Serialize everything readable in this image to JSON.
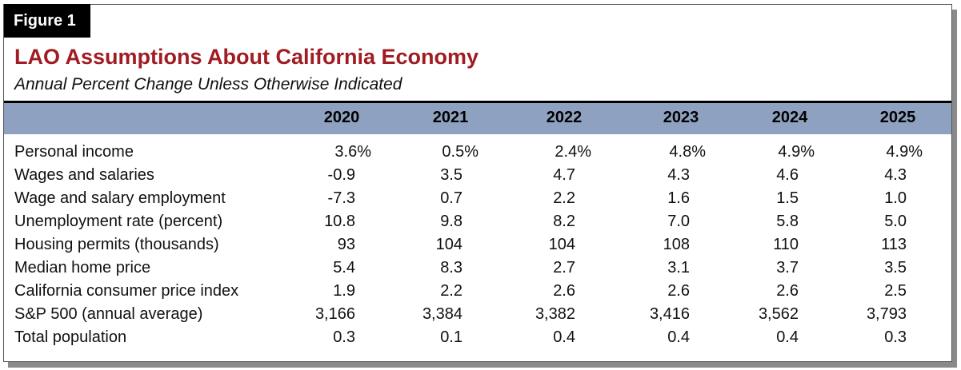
{
  "figure_label": "Figure 1",
  "title": "LAO Assumptions About California Economy",
  "subtitle": "Annual Percent Change Unless Otherwise Indicated",
  "columns": [
    "2020",
    "2021",
    "2022",
    "2023",
    "2024",
    "2025"
  ],
  "rows": [
    {
      "label": "Personal income",
      "values": [
        "3.6%",
        "0.5%",
        "2.4%",
        "4.8%",
        "4.9%",
        "4.9%"
      ]
    },
    {
      "label": "Wages and salaries",
      "values": [
        "-0.9",
        "3.5",
        "4.7",
        "4.3",
        "4.6",
        "4.3"
      ]
    },
    {
      "label": "Wage and salary employment",
      "values": [
        "-7.3",
        "0.7",
        "2.2",
        "1.6",
        "1.5",
        "1.0"
      ]
    },
    {
      "label": "Unemployment rate (percent)",
      "values": [
        "10.8",
        "9.8",
        "8.2",
        "7.0",
        "5.8",
        "5.0"
      ]
    },
    {
      "label": "Housing permits (thousands)",
      "values": [
        "93",
        "104",
        "104",
        "108",
        "110",
        "113"
      ]
    },
    {
      "label": "Median home price",
      "values": [
        "5.4",
        "8.3",
        "2.7",
        "3.1",
        "3.7",
        "3.5"
      ]
    },
    {
      "label": "California consumer price index",
      "values": [
        "1.9",
        "2.2",
        "2.6",
        "2.6",
        "2.6",
        "2.5"
      ]
    },
    {
      "label": "S&P 500 (annual average)",
      "values": [
        "3,166",
        "3,384",
        "3,382",
        "3,416",
        "3,562",
        "3,793"
      ]
    },
    {
      "label": "Total population",
      "values": [
        "0.3",
        "0.1",
        "0.4",
        "0.4",
        "0.4",
        "0.3"
      ]
    }
  ],
  "colors": {
    "title": "#a01c22",
    "header_band": "#8ea1c1",
    "tag_bg": "#000000"
  }
}
